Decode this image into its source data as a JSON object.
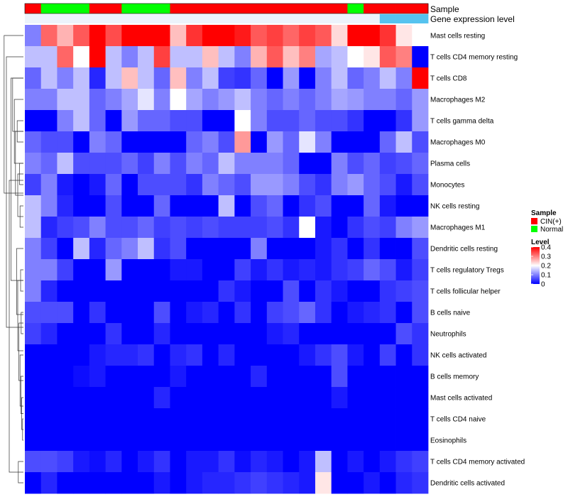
{
  "chart_data": {
    "type": "heatmap",
    "title": "",
    "annotation_tracks": [
      {
        "name": "Sample",
        "values": [
          "CIN(+)",
          "Normal",
          "Normal",
          "Normal",
          "CIN(+)",
          "CIN(+)",
          "Normal",
          "Normal",
          "Normal",
          "CIN(+)",
          "CIN(+)",
          "CIN(+)",
          "CIN(+)",
          "CIN(+)",
          "CIN(+)",
          "CIN(+)",
          "CIN(+)",
          "CIN(+)",
          "CIN(+)",
          "CIN(+)",
          "Normal",
          "CIN(+)",
          "CIN(+)",
          "CIN(+)",
          "CIN(+)"
        ]
      },
      {
        "name": "Gene expression level",
        "values": [
          "low",
          "low",
          "low",
          "low",
          "low",
          "low",
          "low",
          "low",
          "low",
          "low",
          "low",
          "low",
          "low",
          "low",
          "low",
          "low",
          "low",
          "low",
          "low",
          "low",
          "low",
          "low",
          "high",
          "high",
          "high"
        ]
      }
    ],
    "rows": [
      "Mast cells resting",
      "T cells CD4 memory resting",
      "T cells CD8",
      "Macrophages M2",
      "T cells gamma delta",
      "Macrophages M0",
      "Plasma cells",
      "Monocytes",
      "NK cells resting",
      "Macrophages M1",
      "Dendritic cells resting",
      "T cells regulatory  Tregs",
      "T cells follicular helper",
      "B cells naive",
      "Neutrophils",
      "NK cells activated",
      "B cells memory",
      "Mast cells activated",
      "T cells CD4 naive",
      "Eosinophils",
      "T cells CD4 memory activated",
      "Dendritic cells activated"
    ],
    "values": [
      [
        0.1,
        0.32,
        0.26,
        0.33,
        0.4,
        0.34,
        0.4,
        0.4,
        0.4,
        0.25,
        0.36,
        0.4,
        0.4,
        0.38,
        0.33,
        0.35,
        0.32,
        0.35,
        0.33,
        0.23,
        0.4,
        0.4,
        0.36,
        0.22,
        0.2
      ],
      [
        0.15,
        0.15,
        0.32,
        0.2,
        0.4,
        0.15,
        0.1,
        0.15,
        0.35,
        0.15,
        0.15,
        0.25,
        0.15,
        0.1,
        0.26,
        0.33,
        0.25,
        0.3,
        0.13,
        0.15,
        0.2,
        0.22,
        0.33,
        0.3,
        0.0
      ],
      [
        0.08,
        0.15,
        0.1,
        0.15,
        0.03,
        0.15,
        0.25,
        0.15,
        0.08,
        0.25,
        0.1,
        0.15,
        0.05,
        0.04,
        0.08,
        0.0,
        0.12,
        0.0,
        0.1,
        0.15,
        0.08,
        0.1,
        0.15,
        0.1,
        0.4
      ],
      [
        0.1,
        0.1,
        0.15,
        0.15,
        0.08,
        0.1,
        0.13,
        0.18,
        0.1,
        0.2,
        0.13,
        0.1,
        0.12,
        0.15,
        0.1,
        0.08,
        0.1,
        0.08,
        0.1,
        0.13,
        0.12,
        0.1,
        0.1,
        0.08,
        0.12
      ],
      [
        0.0,
        0.0,
        0.1,
        0.15,
        0.08,
        0.0,
        0.12,
        0.08,
        0.08,
        0.06,
        0.06,
        0.0,
        0.0,
        0.2,
        0.1,
        0.06,
        0.06,
        0.08,
        0.06,
        0.06,
        0.04,
        0.0,
        0.0,
        0.04,
        0.12
      ],
      [
        0.08,
        0.06,
        0.06,
        0.0,
        0.1,
        0.08,
        0.0,
        0.0,
        0.0,
        0.0,
        0.08,
        0.1,
        0.06,
        0.28,
        0.0,
        0.12,
        0.08,
        0.18,
        0.1,
        0.0,
        0.0,
        0.0,
        0.08,
        0.15,
        0.06
      ],
      [
        0.1,
        0.08,
        0.15,
        0.06,
        0.06,
        0.06,
        0.08,
        0.05,
        0.1,
        0.06,
        0.1,
        0.08,
        0.15,
        0.1,
        0.1,
        0.1,
        0.08,
        0.0,
        0.0,
        0.1,
        0.06,
        0.08,
        0.05,
        0.06,
        0.08
      ],
      [
        0.05,
        0.1,
        0.02,
        0.0,
        0.02,
        0.08,
        0.0,
        0.06,
        0.06,
        0.06,
        0.04,
        0.1,
        0.08,
        0.06,
        0.12,
        0.12,
        0.1,
        0.06,
        0.04,
        0.1,
        0.12,
        0.08,
        0.06,
        0.02,
        0.06
      ],
      [
        0.15,
        0.1,
        0.03,
        0.0,
        0.0,
        0.06,
        0.0,
        0.0,
        0.08,
        0.0,
        0.0,
        0.0,
        0.15,
        0.0,
        0.06,
        0.08,
        0.0,
        0.04,
        0.06,
        0.0,
        0.0,
        0.08,
        0.02,
        0.0,
        0.0
      ],
      [
        0.15,
        0.03,
        0.05,
        0.06,
        0.1,
        0.06,
        0.06,
        0.08,
        0.05,
        0.06,
        0.05,
        0.06,
        0.05,
        0.05,
        0.05,
        0.06,
        0.04,
        0.2,
        0.02,
        0.0,
        0.04,
        0.06,
        0.05,
        0.1,
        0.12
      ],
      [
        0.1,
        0.05,
        0.0,
        0.15,
        0.03,
        0.08,
        0.1,
        0.15,
        0.04,
        0.06,
        0.0,
        0.0,
        0.0,
        0.0,
        0.1,
        0.0,
        0.0,
        0.0,
        0.02,
        0.04,
        0.0,
        0.04,
        0.0,
        0.0,
        0.06
      ],
      [
        0.1,
        0.1,
        0.05,
        0.0,
        0.0,
        0.12,
        0.0,
        0.0,
        0.0,
        0.02,
        0.02,
        0.0,
        0.0,
        0.05,
        0.02,
        0.04,
        0.02,
        0.03,
        0.02,
        0.04,
        0.05,
        0.08,
        0.06,
        0.02,
        0.05
      ],
      [
        0.1,
        0.03,
        0.0,
        0.0,
        0.0,
        0.0,
        0.0,
        0.0,
        0.0,
        0.0,
        0.0,
        0.0,
        0.04,
        0.02,
        0.0,
        0.0,
        0.06,
        0.0,
        0.04,
        0.02,
        0.0,
        0.0,
        0.04,
        0.05,
        0.06
      ],
      [
        0.06,
        0.06,
        0.06,
        0.0,
        0.04,
        0.0,
        0.0,
        0.0,
        0.06,
        0.0,
        0.02,
        0.03,
        0.0,
        0.04,
        0.0,
        0.05,
        0.06,
        0.08,
        0.04,
        0.0,
        0.02,
        0.03,
        0.04,
        0.0,
        0.06
      ],
      [
        0.05,
        0.03,
        0.0,
        0.0,
        0.0,
        0.04,
        0.0,
        0.0,
        0.03,
        0.0,
        0.0,
        0.0,
        0.0,
        0.0,
        0.0,
        0.02,
        0.03,
        0.0,
        0.0,
        0.0,
        0.0,
        0.0,
        0.0,
        0.06,
        0.04
      ],
      [
        0.0,
        0.0,
        0.0,
        0.0,
        0.02,
        0.03,
        0.03,
        0.04,
        0.0,
        0.03,
        0.04,
        0.0,
        0.03,
        0.0,
        0.0,
        0.0,
        0.0,
        0.02,
        0.04,
        0.06,
        0.02,
        0.0,
        0.05,
        0.0,
        0.04
      ],
      [
        0.0,
        0.0,
        0.0,
        0.01,
        0.02,
        0.0,
        0.0,
        0.0,
        0.0,
        0.02,
        0.0,
        0.0,
        0.0,
        0.0,
        0.03,
        0.0,
        0.0,
        0.0,
        0.0,
        0.06,
        0.0,
        0.0,
        0.0,
        0.0,
        0.0
      ],
      [
        0.0,
        0.0,
        0.0,
        0.0,
        0.0,
        0.0,
        0.0,
        0.0,
        0.03,
        0.0,
        0.0,
        0.0,
        0.0,
        0.0,
        0.0,
        0.0,
        0.0,
        0.0,
        0.0,
        0.02,
        0.0,
        0.0,
        0.0,
        0.0,
        0.0
      ],
      [
        0.0,
        0.0,
        0.0,
        0.0,
        0.0,
        0.0,
        0.0,
        0.0,
        0.0,
        0.0,
        0.0,
        0.0,
        0.0,
        0.0,
        0.0,
        0.0,
        0.0,
        0.0,
        0.0,
        0.0,
        0.0,
        0.0,
        0.0,
        0.0,
        0.0
      ],
      [
        0.0,
        0.0,
        0.0,
        0.0,
        0.0,
        0.0,
        0.0,
        0.0,
        0.0,
        0.0,
        0.0,
        0.0,
        0.0,
        0.0,
        0.0,
        0.0,
        0.0,
        0.0,
        0.0,
        0.0,
        0.0,
        0.0,
        0.0,
        0.0,
        0.0
      ],
      [
        0.06,
        0.06,
        0.05,
        0.02,
        0.01,
        0.03,
        0.0,
        0.02,
        0.04,
        0.0,
        0.02,
        0.02,
        0.04,
        0.01,
        0.03,
        0.02,
        0.0,
        0.02,
        0.15,
        0.0,
        0.02,
        0.0,
        0.02,
        0.04,
        0.05
      ],
      [
        0.0,
        0.03,
        0.0,
        0.0,
        0.0,
        0.0,
        0.0,
        0.0,
        0.02,
        0.0,
        0.02,
        0.03,
        0.03,
        0.04,
        0.05,
        0.04,
        0.03,
        0.02,
        0.22,
        0.0,
        0.0,
        0.02,
        0.0,
        0.03,
        0.04
      ]
    ],
    "color_scale": {
      "min": 0,
      "mid": 0.2,
      "max": 0.4,
      "low_color": "#0000ff",
      "mid_color": "#ffffff",
      "high_color": "#ff0000"
    },
    "legend": {
      "sample": {
        "title": "Sample",
        "entries": [
          {
            "label": "CIN(+)",
            "color": "#ff0000"
          },
          {
            "label": "Normal",
            "color": "#00ff00"
          }
        ]
      },
      "level": {
        "title": "Level",
        "ticks": [
          0.4,
          0.3,
          0.2,
          0.1,
          0
        ]
      }
    },
    "expression_level_colors": {
      "low": "#ecf3fb",
      "high": "#56c3ef"
    },
    "row_dendrogram": true,
    "legend_position": "right"
  }
}
